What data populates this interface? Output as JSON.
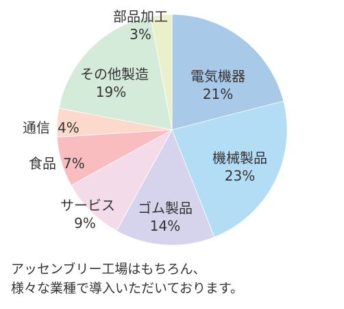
{
  "chart_data": {
    "type": "pie",
    "title": "",
    "start_angle_deg": 0,
    "direction": "clockwise",
    "slices": [
      {
        "label": "電気機器",
        "value": 21,
        "value_label": "21%",
        "color": "#a9c9e9"
      },
      {
        "label": "機械製品",
        "value": 23,
        "value_label": "23%",
        "color": "#b3dcf5"
      },
      {
        "label": "ゴム製品",
        "value": 14,
        "value_label": "14%",
        "color": "#d6d3ec"
      },
      {
        "label": "サービス",
        "value": 9,
        "value_label": "9%",
        "color": "#f3dbe9"
      },
      {
        "label": "食品",
        "value": 7,
        "value_label": "7%",
        "color": "#f9bcbf"
      },
      {
        "label": "通信",
        "value": 4,
        "value_label": "4%",
        "color": "#fcd9cb"
      },
      {
        "label": "その他製造",
        "value": 19,
        "value_label": "19%",
        "color": "#d4ebd9"
      },
      {
        "label": "部品加工",
        "value": 3,
        "value_label": "3%",
        "color": "#eaf0c9"
      }
    ]
  },
  "caption": {
    "line1": "アッセンブリー工場はもちろん、",
    "line2": "様々な業種で導入いただいております。"
  }
}
